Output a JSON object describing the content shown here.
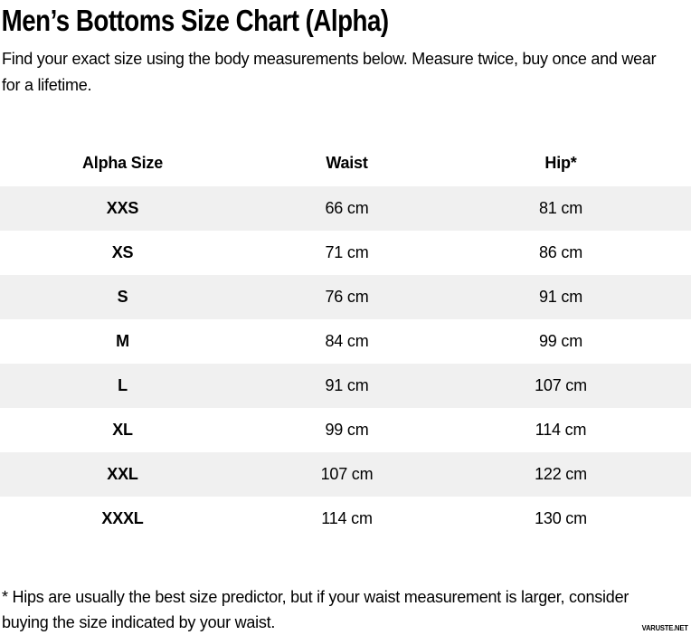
{
  "page": {
    "title": "Men’s Bottoms Size Chart (Alpha)",
    "intro": "Find your exact size using the body measurements below. Measure twice, buy once and wear for a lifetime.",
    "footnote": "* Hips are usually the best size predictor, but if your waist measurement is larger, consider buying the size indicated by your waist.",
    "watermark": "VARUSTE.NET"
  },
  "table": {
    "columns": [
      "Alpha Size",
      "Waist",
      "Hip*"
    ],
    "rows": [
      {
        "size": "XXS",
        "waist": "66 cm",
        "hip": "81 cm"
      },
      {
        "size": "XS",
        "waist": "71 cm",
        "hip": "86 cm"
      },
      {
        "size": "S",
        "waist": "76 cm",
        "hip": "91 cm"
      },
      {
        "size": "M",
        "waist": "84 cm",
        "hip": "99 cm"
      },
      {
        "size": "L",
        "waist": "91 cm",
        "hip": "107 cm"
      },
      {
        "size": "XL",
        "waist": "99 cm",
        "hip": "114 cm"
      },
      {
        "size": "XXL",
        "waist": "107 cm",
        "hip": "122 cm"
      },
      {
        "size": "XXXL",
        "waist": "114 cm",
        "hip": "130 cm"
      }
    ]
  },
  "chart_data": {
    "type": "table",
    "title": "Men’s Bottoms Size Chart (Alpha)",
    "columns": [
      "Alpha Size",
      "Waist",
      "Hip*"
    ],
    "categories": [
      "XXS",
      "XS",
      "S",
      "M",
      "L",
      "XL",
      "XXL",
      "XXXL"
    ],
    "series": [
      {
        "name": "Waist (cm)",
        "values": [
          66,
          71,
          76,
          84,
          91,
          99,
          107,
          114
        ]
      },
      {
        "name": "Hip (cm)",
        "values": [
          81,
          86,
          91,
          99,
          107,
          114,
          122,
          130
        ]
      }
    ]
  },
  "colors": {
    "background": "#ffffff",
    "text": "#000000",
    "stripe": "#f0f0f0"
  }
}
